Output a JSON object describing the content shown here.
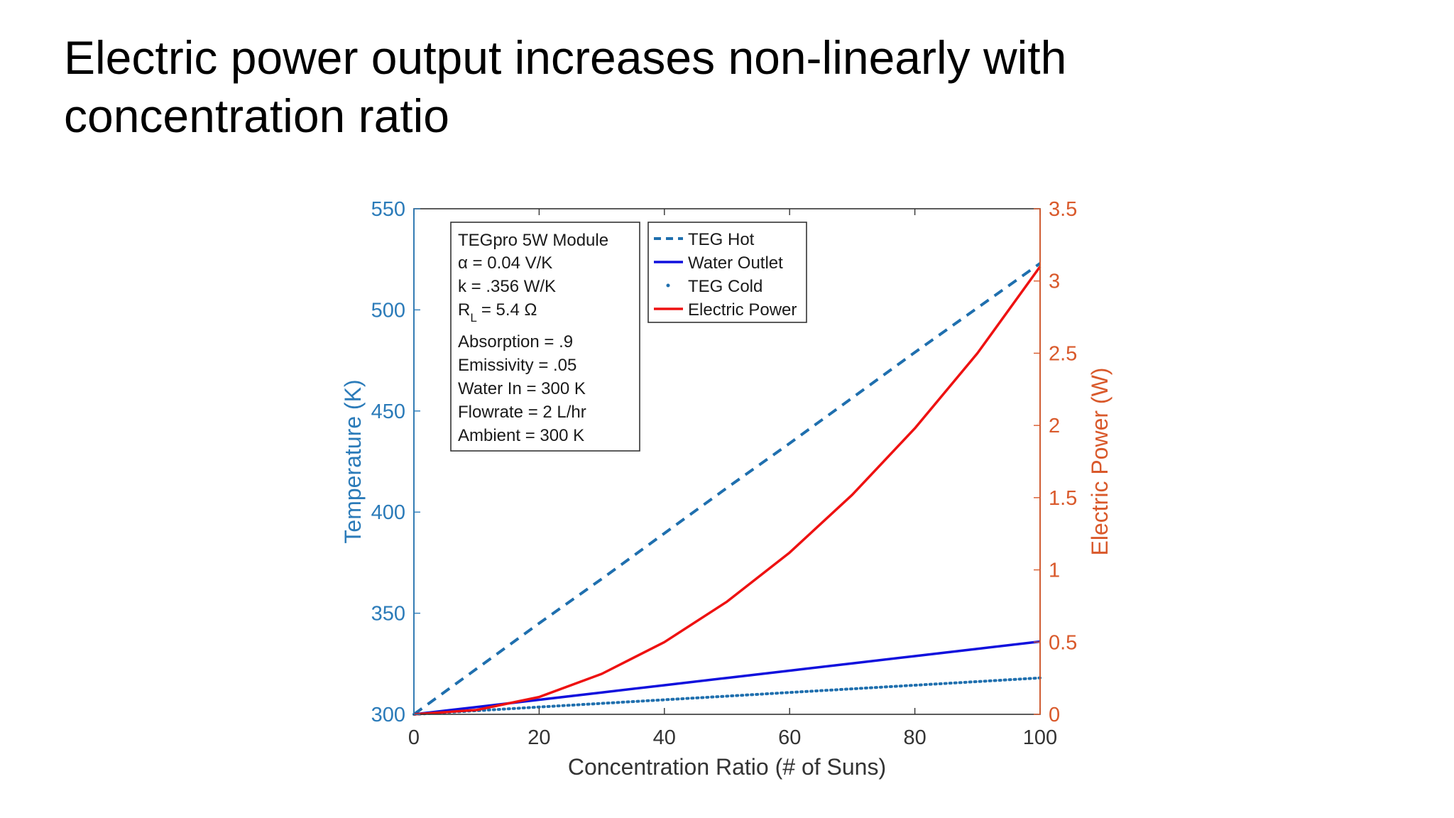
{
  "slide": {
    "title": "Electric power output increases non-linearly with concentration ratio"
  },
  "colors": {
    "left_axis": "#2b7bb9",
    "right_axis": "#d9592b",
    "teg_hot": "#1f6fae",
    "water_outlet": "#1010dd",
    "teg_cold": "#1f6fae",
    "electric_power": "#ee1111",
    "frame": "#333333",
    "text": "#1a1a1a"
  },
  "chart_data": {
    "type": "line",
    "title": "",
    "xlabel": "Concentration Ratio (# of Suns)",
    "ylabel_left": "Temperature (K)",
    "ylabel_right": "Electric Power (W)",
    "xlim": [
      0,
      100
    ],
    "ylim_left": [
      300,
      550
    ],
    "ylim_right": [
      0,
      3.5
    ],
    "xticks": [
      0,
      20,
      40,
      60,
      80,
      100
    ],
    "xtick_labels": [
      "0",
      "20",
      "40",
      "60",
      "80",
      "100"
    ],
    "yticks_left": [
      300,
      350,
      400,
      450,
      500,
      550
    ],
    "ytick_labels_left": [
      "300",
      "350",
      "400",
      "450",
      "500",
      "550"
    ],
    "yticks_right": [
      0,
      0.5,
      1,
      1.5,
      2,
      2.5,
      3,
      3.5
    ],
    "ytick_labels_right": [
      "0",
      "0.5",
      "1",
      "1.5",
      "2",
      "2.5",
      "3",
      "3.5"
    ],
    "grid": false,
    "legend_position": "top-center",
    "series": [
      {
        "name": "TEG Hot",
        "axis": "left",
        "style": "dashed",
        "x": [
          0,
          10,
          20,
          30,
          40,
          50,
          60,
          70,
          80,
          90,
          100
        ],
        "values": [
          300,
          322.5,
          345,
          367,
          389.5,
          412,
          434,
          456.5,
          479,
          501,
          523
        ]
      },
      {
        "name": "Water Outlet",
        "axis": "left",
        "style": "solid",
        "x": [
          0,
          10,
          20,
          30,
          40,
          50,
          60,
          70,
          80,
          90,
          100
        ],
        "values": [
          300,
          303.6,
          307.2,
          310.8,
          314.4,
          318,
          321.6,
          325.2,
          328.8,
          332.4,
          336
        ]
      },
      {
        "name": "TEG Cold",
        "axis": "left",
        "style": "dotted",
        "x": [
          0,
          10,
          20,
          30,
          40,
          50,
          60,
          70,
          80,
          90,
          100
        ],
        "values": [
          300,
          301.8,
          303.6,
          305.4,
          307.2,
          309,
          310.8,
          312.6,
          314.4,
          316.2,
          318
        ]
      },
      {
        "name": "Electric Power",
        "axis": "right",
        "style": "solid",
        "x": [
          0,
          10,
          20,
          30,
          40,
          50,
          60,
          70,
          80,
          90,
          100
        ],
        "values": [
          0,
          0.03,
          0.12,
          0.28,
          0.5,
          0.78,
          1.12,
          1.52,
          1.98,
          2.5,
          3.1
        ]
      }
    ],
    "legend": [
      "TEG Hot",
      "Water Outlet",
      "TEG Cold",
      "Electric Power"
    ],
    "annotation": {
      "lines": [
        "TEGpro 5W Module",
        "α = 0.04 V/K",
        "k = .356 W/K",
        "R",
        "L",
        "= 5.4 Ω",
        "Absorption = .9",
        "Emissivity = .05",
        "Water In = 300 K",
        "Flowrate = 2 L/hr",
        "Ambient = 300 K"
      ]
    }
  }
}
